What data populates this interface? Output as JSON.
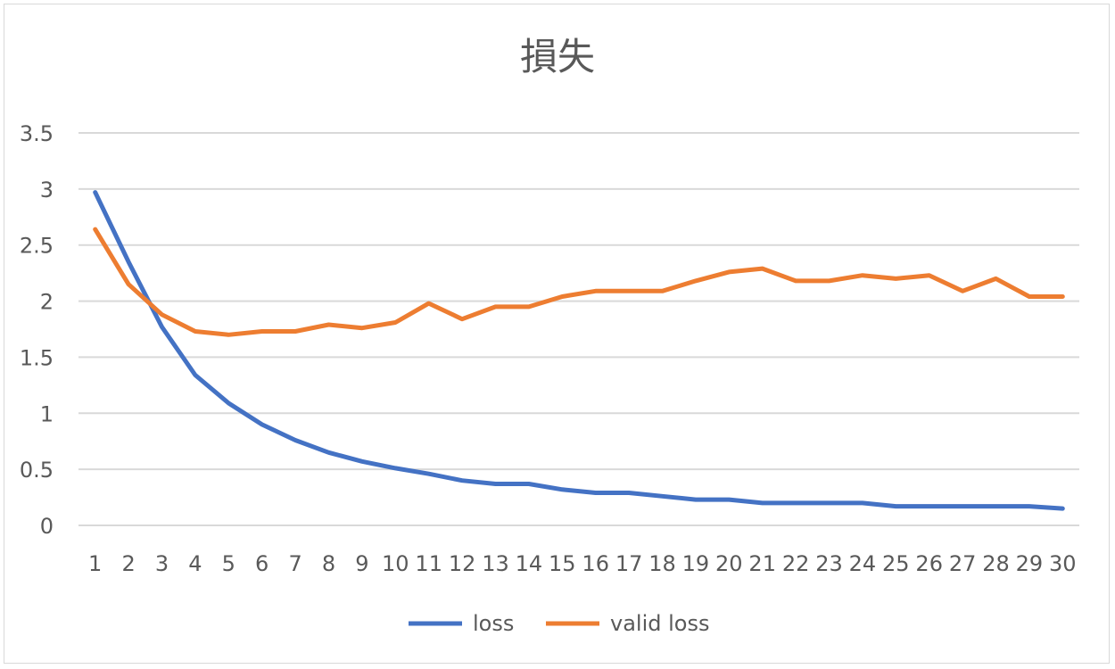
{
  "chart_data": {
    "type": "line",
    "title": "損失",
    "xlabel": "",
    "ylabel": "",
    "categories": [
      "1",
      "2",
      "3",
      "4",
      "5",
      "6",
      "7",
      "8",
      "9",
      "10",
      "11",
      "12",
      "13",
      "14",
      "15",
      "16",
      "17",
      "18",
      "19",
      "20",
      "21",
      "22",
      "23",
      "24",
      "25",
      "26",
      "27",
      "28",
      "29",
      "30"
    ],
    "ylim": [
      0,
      3.5
    ],
    "yticks": [
      0,
      0.5,
      1,
      1.5,
      2,
      2.5,
      3,
      3.5
    ],
    "ytick_labels": [
      "0",
      "0.5",
      "1",
      "1.5",
      "2",
      "2.5",
      "3",
      "3.5"
    ],
    "grid": true,
    "legend_position": "bottom",
    "series": [
      {
        "name": "loss",
        "color": "#4472c4",
        "values": [
          2.97,
          2.35,
          1.77,
          1.34,
          1.09,
          0.9,
          0.76,
          0.65,
          0.57,
          0.51,
          0.46,
          0.4,
          0.37,
          0.37,
          0.32,
          0.29,
          0.29,
          0.26,
          0.23,
          0.23,
          0.2,
          0.2,
          0.2,
          0.2,
          0.17,
          0.17,
          0.17,
          0.17,
          0.17,
          0.15
        ]
      },
      {
        "name": "valid loss",
        "color": "#ed7d31",
        "values": [
          2.64,
          2.15,
          1.88,
          1.73,
          1.7,
          1.73,
          1.73,
          1.79,
          1.76,
          1.81,
          1.98,
          1.84,
          1.95,
          1.95,
          2.04,
          2.09,
          2.09,
          2.09,
          2.18,
          2.26,
          2.29,
          2.18,
          2.18,
          2.23,
          2.2,
          2.23,
          2.09,
          2.2,
          2.04,
          2.04
        ]
      }
    ]
  }
}
